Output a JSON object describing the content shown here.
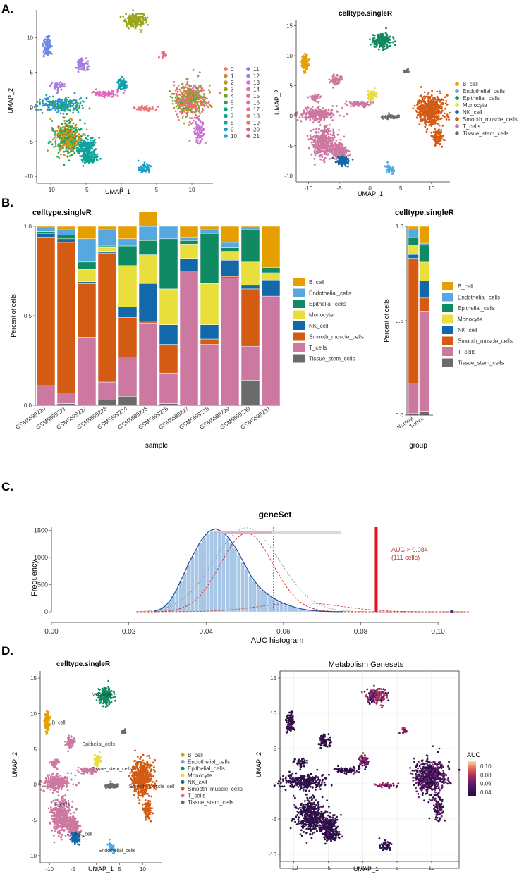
{
  "panel_labels": [
    "A.",
    "B.",
    "C.",
    "D."
  ],
  "colors": {
    "B_cell": "#e69f00",
    "Endothelial_cells": "#56a8de",
    "Epithelial_cells": "#0f8a63",
    "Monocyte": "#e8df3c",
    "NK_cell": "#1268a8",
    "Smooth_muscle_cells": "#d45b14",
    "T_cells": "#cc78a0",
    "Tissue_stem_cells": "#6b6b6b"
  },
  "cluster_palette": [
    "#e8735f",
    "#d4881f",
    "#c49a16",
    "#9aa51c",
    "#62a82c",
    "#1fa84a",
    "#12a46e",
    "#0ea392",
    "#10a0ae",
    "#1a9cc8",
    "#3a94da",
    "#6f87e3",
    "#a27ce0",
    "#c873d4",
    "#e067bc",
    "#ea67a0",
    "#ee6b85",
    "#f0707a",
    "#e77a6a",
    "#e8735f",
    "#d06676",
    "#c45886"
  ],
  "chart_data": [
    {
      "id": "A1",
      "type": "scatter",
      "title": "",
      "xlabel": "UMAP_1",
      "ylabel": "UMAP_2",
      "xticks": [
        -10,
        -5,
        0,
        5,
        10
      ],
      "yticks": [
        -10,
        -5,
        0,
        5,
        10
      ],
      "xlim": [
        -12,
        13
      ],
      "ylim": [
        -11,
        14
      ],
      "legend": [
        "0",
        "1",
        "2",
        "3",
        "4",
        "5",
        "6",
        "7",
        "8",
        "9",
        "10",
        "11",
        "12",
        "13",
        "14",
        "15",
        "16",
        "17",
        "18",
        "19",
        "20",
        "21"
      ],
      "legend_placement": "right",
      "coloring": "cluster"
    },
    {
      "id": "A2",
      "type": "scatter",
      "title": "celltype.singleR",
      "xlabel": "UMAP_1",
      "ylabel": "UMAP_2",
      "xticks": [
        -10,
        -5,
        0,
        5,
        10
      ],
      "yticks": [
        -10,
        -5,
        0,
        5,
        10,
        15
      ],
      "xlim": [
        -12,
        13
      ],
      "ylim": [
        -11,
        16
      ],
      "legend": [
        "B_cell",
        "Endothelial_cells",
        "Epithelial_cells",
        "Monocyte",
        "NK_cell",
        "Smooth_muscle_cells",
        "T_cells",
        "Tissue_stem_cells"
      ],
      "legend_placement": "right",
      "coloring": "celltype"
    },
    {
      "id": "B1",
      "type": "bar",
      "stacked": true,
      "title": "celltype.singleR",
      "xlabel": "sample",
      "ylabel": "Percent of cells",
      "ylim": [
        0,
        1
      ],
      "yticks": [
        "0.0",
        "0.5",
        "1.0"
      ],
      "categories": [
        "GSM5599220",
        "GSM5599221",
        "GSM5599222",
        "GSM5599223",
        "GSM5599224",
        "GSM5599225",
        "GSM5599226",
        "GSM5599227",
        "GSM5599228",
        "GSM5599229",
        "GSM5599230",
        "GSM5599231"
      ],
      "series": [
        {
          "name": "Tissue_stem_cells",
          "values": [
            0.0,
            0.01,
            0.0,
            0.03,
            0.05,
            0.0,
            0.01,
            0.0,
            0.0,
            0.0,
            0.14,
            0.0
          ]
        },
        {
          "name": "T_cells",
          "values": [
            0.11,
            0.06,
            0.38,
            0.1,
            0.22,
            0.46,
            0.17,
            0.75,
            0.34,
            0.71,
            0.19,
            0.61
          ]
        },
        {
          "name": "Smooth_muscle_cells",
          "values": [
            0.83,
            0.84,
            0.3,
            0.72,
            0.22,
            0.01,
            0.16,
            0.0,
            0.03,
            0.01,
            0.32,
            0.0
          ]
        },
        {
          "name": "NK_cell",
          "values": [
            0.02,
            0.02,
            0.01,
            0.01,
            0.06,
            0.21,
            0.11,
            0.07,
            0.08,
            0.09,
            0.02,
            0.09
          ]
        },
        {
          "name": "Monocyte",
          "values": [
            0.0,
            0.0,
            0.07,
            0.02,
            0.23,
            0.16,
            0.2,
            0.08,
            0.23,
            0.05,
            0.13,
            0.04
          ]
        },
        {
          "name": "Epithelial_cells",
          "values": [
            0.01,
            0.02,
            0.04,
            0.01,
            0.11,
            0.08,
            0.28,
            0.02,
            0.28,
            0.02,
            0.18,
            0.03
          ]
        },
        {
          "name": "Endothelial_cells",
          "values": [
            0.02,
            0.03,
            0.13,
            0.09,
            0.04,
            0.08,
            0.07,
            0.02,
            0.02,
            0.03,
            0.01,
            0.0
          ]
        },
        {
          "name": "B_cell",
          "values": [
            0.01,
            0.02,
            0.07,
            0.02,
            0.07,
            0.08,
            0.0,
            0.06,
            0.02,
            0.09,
            0.01,
            0.23
          ]
        }
      ],
      "legend": [
        "B_cell",
        "Endothelial_cells",
        "Epithelial_cells",
        "Monocyte",
        "NK_cell",
        "Smooth_muscle_cells",
        "T_cells",
        "Tissue_stem_cells"
      ],
      "legend_placement": "right"
    },
    {
      "id": "B2",
      "type": "bar",
      "stacked": true,
      "title": "celltype.singleR",
      "xlabel": "group",
      "ylabel": "Percent of cells",
      "ylim": [
        0,
        1
      ],
      "yticks": [
        "0.0",
        "0.5",
        "1.0"
      ],
      "categories": [
        "Normal",
        "Tumor"
      ],
      "series": [
        {
          "name": "Tissue_stem_cells",
          "values": [
            0.01,
            0.02
          ]
        },
        {
          "name": "T_cells",
          "values": [
            0.16,
            0.53
          ]
        },
        {
          "name": "Smooth_muscle_cells",
          "values": [
            0.66,
            0.07
          ]
        },
        {
          "name": "NK_cell",
          "values": [
            0.02,
            0.09
          ]
        },
        {
          "name": "Monocyte",
          "values": [
            0.05,
            0.1
          ]
        },
        {
          "name": "Epithelial_cells",
          "values": [
            0.04,
            0.09
          ]
        },
        {
          "name": "Endothelial_cells",
          "values": [
            0.04,
            0.01
          ]
        },
        {
          "name": "B_cell",
          "values": [
            0.02,
            0.09
          ]
        }
      ],
      "legend": [
        "B_cell",
        "Endothelial_cells",
        "Epithelial_cells",
        "Monocyte",
        "NK_cell",
        "Smooth_muscle_cells",
        "T_cells",
        "Tissue_stem_cells"
      ],
      "legend_placement": "right"
    },
    {
      "id": "C",
      "type": "histogram",
      "title": "geneSet",
      "xlabel": "AUC histogram",
      "ylabel": "Frequency",
      "xlim": [
        0,
        0.108
      ],
      "ylim": [
        0,
        1560
      ],
      "xticks": [
        "0.00",
        "0.02",
        "0.04",
        "0.06",
        "0.08",
        "0.10"
      ],
      "yticks": [
        "0",
        "500",
        "1000",
        "1500"
      ],
      "bin_start": 0.026,
      "bin_width": 0.001,
      "values": [
        10,
        28,
        60,
        110,
        185,
        290,
        420,
        570,
        720,
        880,
        1010,
        1140,
        1270,
        1360,
        1440,
        1480,
        1500,
        1470,
        1430,
        1360,
        1270,
        1170,
        1050,
        920,
        790,
        660,
        560,
        470,
        400,
        340,
        290,
        245,
        205,
        170,
        140,
        115,
        92,
        72,
        55,
        42,
        30,
        22,
        16,
        11,
        8,
        6,
        4,
        3,
        2,
        1
      ],
      "threshold": 0.084,
      "threshold_label": [
        "AUC > 0.084",
        "(111 cells)"
      ],
      "reference_lines": [
        0.0397,
        0.0574
      ],
      "fit_mean": 0.0505,
      "fit_sd": 0.0068,
      "fit_peak": 1450,
      "tail_mean": 0.0645,
      "tail_sd": 0.0105,
      "tail_peak": 165,
      "model_mean": 0.0505,
      "model_sd": 0.0085,
      "model_peak": 1550
    },
    {
      "id": "D1",
      "type": "scatter",
      "title": "celltype.singleR",
      "xlabel": "UMAP_1",
      "ylabel": "UMAP_2",
      "xticks": [
        -10,
        -5,
        0,
        5,
        10
      ],
      "yticks": [
        -10,
        -5,
        0,
        5,
        10,
        15
      ],
      "xlim": [
        -12,
        14
      ],
      "ylim": [
        -11,
        16
      ],
      "annotations": [
        "Monocyte",
        "B_cell",
        "Epithelial_cells",
        "Tissue_stem_cells",
        "Smooth_muscle_cell",
        "T_cells",
        "NK_cell",
        "Endothelial_cells"
      ],
      "legend": [
        "B_cell",
        "Endothelial_cells",
        "Epithelial_cells",
        "Monocyte",
        "NK_cell",
        "Smooth_muscle_cells",
        "T_cells",
        "Tissue_stem_cells"
      ],
      "legend_placement": "right",
      "coloring": "celltype"
    },
    {
      "id": "D2",
      "type": "scatter",
      "title": "Metabolism Genesets",
      "xlabel": "UMAP_1",
      "ylabel": "UMAP_2",
      "xticks": [
        -10,
        -5,
        0,
        5,
        10
      ],
      "yticks": [
        -10,
        -5,
        0,
        5,
        10,
        15
      ],
      "xlim": [
        -12,
        14
      ],
      "ylim": [
        -11,
        16
      ],
      "colorbar_title": "AUC",
      "colorbar_ticks": [
        "0.10",
        "0.08",
        "0.06",
        "0.04"
      ],
      "coloring": "AUC"
    }
  ]
}
